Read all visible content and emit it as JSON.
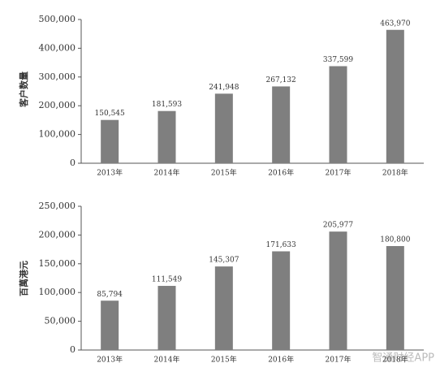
{
  "chart_data": [
    {
      "type": "bar",
      "y_label": "客户数量",
      "categories": [
        "2013年",
        "2014年",
        "2015年",
        "2016年",
        "2017年",
        "2018年"
      ],
      "values": [
        150545,
        181593,
        241948,
        267132,
        337599,
        463970
      ],
      "value_labels": [
        "150,545",
        "181,593",
        "241,948",
        "267,132",
        "337,599",
        "463,970"
      ],
      "color": "#7f7f7f",
      "ylim": [
        0,
        500000
      ],
      "yticks": [
        0,
        {
          "value": 100000,
          "label": "100,000"
        },
        {
          "value": 200000,
          "label": "200,000"
        },
        {
          "value": 300000,
          "label": "300,000"
        },
        {
          "value": 400000,
          "label": "400,000"
        },
        {
          "value": 500000,
          "label": "500,000"
        }
      ]
    },
    {
      "type": "bar",
      "y_label": "百萬港元",
      "categories": [
        "2013年",
        "2014年",
        "2015年",
        "2016年",
        "2017年",
        "2018年"
      ],
      "values": [
        85794,
        111549,
        145307,
        171633,
        205977,
        180800
      ],
      "value_labels": [
        "85,794",
        "111,549",
        "145,307",
        "171,633",
        "205,977",
        "180,800"
      ],
      "color": "#7f7f7f",
      "ylim": [
        0,
        250000
      ],
      "yticks": [
        0,
        {
          "value": 50000,
          "label": "50,000"
        },
        {
          "value": 100000,
          "label": "100,000"
        },
        {
          "value": 150000,
          "label": "150,000"
        },
        {
          "value": 200000,
          "label": "200,000"
        },
        {
          "value": 250000,
          "label": "250,000"
        }
      ]
    }
  ],
  "watermark": "智通财经APP"
}
